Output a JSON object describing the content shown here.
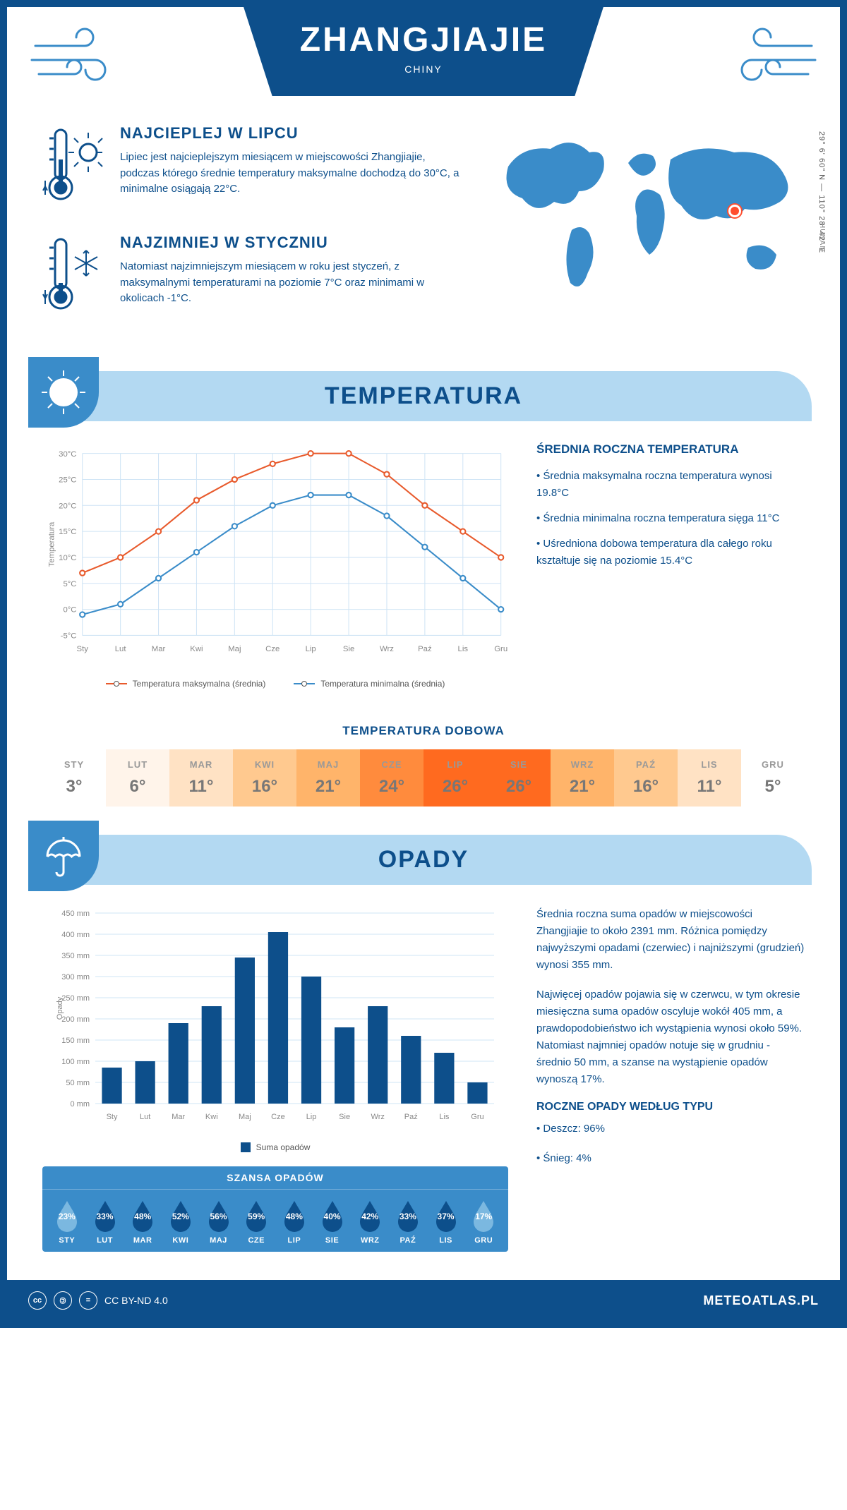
{
  "header": {
    "title": "ZHANGJIAJIE",
    "subtitle": "CHINY"
  },
  "coords": "29° 6' 60\" N — 110° 28' 42\" E",
  "region": "HUNAN",
  "marker": {
    "left_pct": 76,
    "top_pct": 44
  },
  "intro": {
    "hot": {
      "title": "NAJCIEPLEJ W LIPCU",
      "text": "Lipiec jest najcieplejszym miesiącem w miejscowości Zhangjiajie, podczas którego średnie temperatury maksymalne dochodzą do 30°C, a minimalne osiągają 22°C."
    },
    "cold": {
      "title": "NAJZIMNIEJ W STYCZNIU",
      "text": "Natomiast najzimniejszym miesiącem w roku jest styczeń, z maksymalnymi temperaturami na poziomie 7°C oraz minimami w okolicach -1°C."
    }
  },
  "temp_section": {
    "header": "TEMPERATURA",
    "chart": {
      "type": "line",
      "months": [
        "Sty",
        "Lut",
        "Mar",
        "Kwi",
        "Maj",
        "Cze",
        "Lip",
        "Sie",
        "Wrz",
        "Paź",
        "Lis",
        "Gru"
      ],
      "ylabel": "Temperatura",
      "ylim": [
        -5,
        30
      ],
      "ytick_step": 5,
      "ytick_suffix": "°C",
      "grid_color": "#cfe4f5",
      "series": [
        {
          "name": "Temperatura maksymalna (średnia)",
          "color": "#e85a2c",
          "values": [
            7,
            10,
            15,
            21,
            25,
            28,
            30,
            30,
            26,
            20,
            15,
            10
          ]
        },
        {
          "name": "Temperatura minimalna (średnia)",
          "color": "#3a8cc9",
          "values": [
            -1,
            1,
            6,
            11,
            16,
            20,
            22,
            22,
            18,
            12,
            6,
            0
          ]
        }
      ]
    },
    "info": {
      "title": "ŚREDNIA ROCZNA TEMPERATURA",
      "bullets": [
        "• Średnia maksymalna roczna temperatura wynosi 19.8°C",
        "• Średnia minimalna roczna temperatura sięga 11°C",
        "• Uśredniona dobowa temperatura dla całego roku kształtuje się na poziomie 15.4°C"
      ]
    },
    "daily": {
      "title": "TEMPERATURA DOBOWA",
      "months": [
        "STY",
        "LUT",
        "MAR",
        "KWI",
        "MAJ",
        "CZE",
        "LIP",
        "SIE",
        "WRZ",
        "PAŹ",
        "LIS",
        "GRU"
      ],
      "temps": [
        "3°",
        "6°",
        "11°",
        "16°",
        "21°",
        "24°",
        "26°",
        "26°",
        "21°",
        "16°",
        "11°",
        "5°"
      ],
      "bg_colors": [
        "#ffffff",
        "#fff4ea",
        "#ffe2c4",
        "#ffc98f",
        "#ffb46a",
        "#ff8b3d",
        "#ff6a1f",
        "#ff6a1f",
        "#ffb46a",
        "#ffc98f",
        "#ffe2c4",
        "#ffffff"
      ]
    }
  },
  "precip_section": {
    "header": "OPADY",
    "chart": {
      "type": "bar",
      "months": [
        "Sty",
        "Lut",
        "Mar",
        "Kwi",
        "Maj",
        "Cze",
        "Lip",
        "Sie",
        "Wrz",
        "Paź",
        "Lis",
        "Gru"
      ],
      "ylabel": "Opady",
      "ylim": [
        0,
        450
      ],
      "ytick_step": 50,
      "ytick_suffix": " mm",
      "bar_color": "#0d4f8b",
      "grid_color": "#cfe4f5",
      "values": [
        85,
        100,
        190,
        230,
        345,
        405,
        300,
        180,
        230,
        160,
        120,
        50
      ],
      "legend": "Suma opadów"
    },
    "info": {
      "p1": "Średnia roczna suma opadów w miejscowości Zhangjiajie to około 2391 mm. Różnica pomiędzy najwyższymi opadami (czerwiec) i najniższymi (grudzień) wynosi 355 mm.",
      "p2": "Najwięcej opadów pojawia się w czerwcu, w tym okresie miesięczna suma opadów oscyluje wokół 405 mm, a prawdopodobieństwo ich wystąpienia wynosi około 59%. Natomiast najmniej opadów notuje się w grudniu - średnio 50 mm, a szanse na wystąpienie opadów wynoszą 17%.",
      "type_title": "ROCZNE OPADY WEDŁUG TYPU",
      "types": [
        "• Deszcz: 96%",
        "• Śnieg: 4%"
      ]
    },
    "chance": {
      "title": "SZANSA OPADÓW",
      "months": [
        "STY",
        "LUT",
        "MAR",
        "KWI",
        "MAJ",
        "CZE",
        "LIP",
        "SIE",
        "WRZ",
        "PAŹ",
        "LIS",
        "GRU"
      ],
      "percents": [
        "23%",
        "33%",
        "48%",
        "52%",
        "56%",
        "59%",
        "48%",
        "40%",
        "42%",
        "33%",
        "37%",
        "17%"
      ],
      "drop_colors": [
        "#7bb8e0",
        "#0d4f8b",
        "#0d4f8b",
        "#0d4f8b",
        "#0d4f8b",
        "#0d4f8b",
        "#0d4f8b",
        "#0d4f8b",
        "#0d4f8b",
        "#0d4f8b",
        "#0d4f8b",
        "#7bb8e0"
      ]
    }
  },
  "footer": {
    "license": "CC BY-ND 4.0",
    "site": "METEOATLAS.PL"
  },
  "colors": {
    "primary": "#0d4f8b",
    "light_blue": "#b3d9f2",
    "mid_blue": "#3a8cc9",
    "map_blue": "#3a8cc9"
  }
}
